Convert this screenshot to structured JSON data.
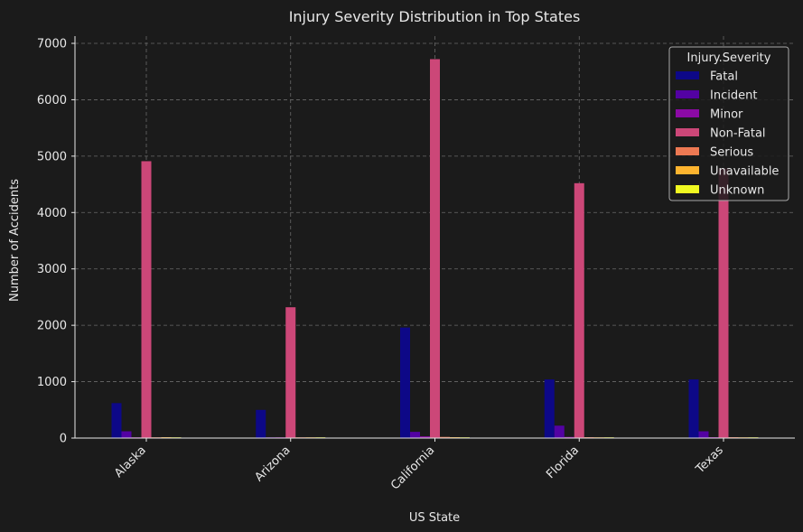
{
  "chart_data": {
    "type": "bar",
    "title": "Injury Severity Distribution in Top States",
    "xlabel": "US State",
    "ylabel": "Number of Accidents",
    "categories": [
      "Alaska",
      "Arizona",
      "California",
      "Florida",
      "Texas"
    ],
    "ylim": [
      0,
      7000
    ],
    "yticks": [
      0,
      1000,
      2000,
      3000,
      4000,
      5000,
      6000,
      7000
    ],
    "grid": true,
    "legend": {
      "title": "Injury.Severity",
      "placement": "top-right"
    },
    "series": [
      {
        "name": "Fatal",
        "color": "#0d0887",
        "values": [
          620,
          500,
          1960,
          1040,
          1040
        ]
      },
      {
        "name": "Incident",
        "color": "#5302a3",
        "values": [
          120,
          10,
          110,
          220,
          120
        ]
      },
      {
        "name": "Minor",
        "color": "#8b0aa5",
        "values": [
          8,
          5,
          30,
          20,
          15
        ]
      },
      {
        "name": "Non-Fatal",
        "color": "#cc4778",
        "values": [
          4910,
          2320,
          6720,
          4520,
          4780
        ]
      },
      {
        "name": "Serious",
        "color": "#ed7953",
        "values": [
          10,
          5,
          20,
          15,
          15
        ]
      },
      {
        "name": "Unavailable",
        "color": "#fdb42f",
        "values": [
          15,
          5,
          15,
          10,
          5
        ]
      },
      {
        "name": "Unknown",
        "color": "#f0f921",
        "values": [
          10,
          10,
          10,
          10,
          12
        ]
      }
    ]
  }
}
